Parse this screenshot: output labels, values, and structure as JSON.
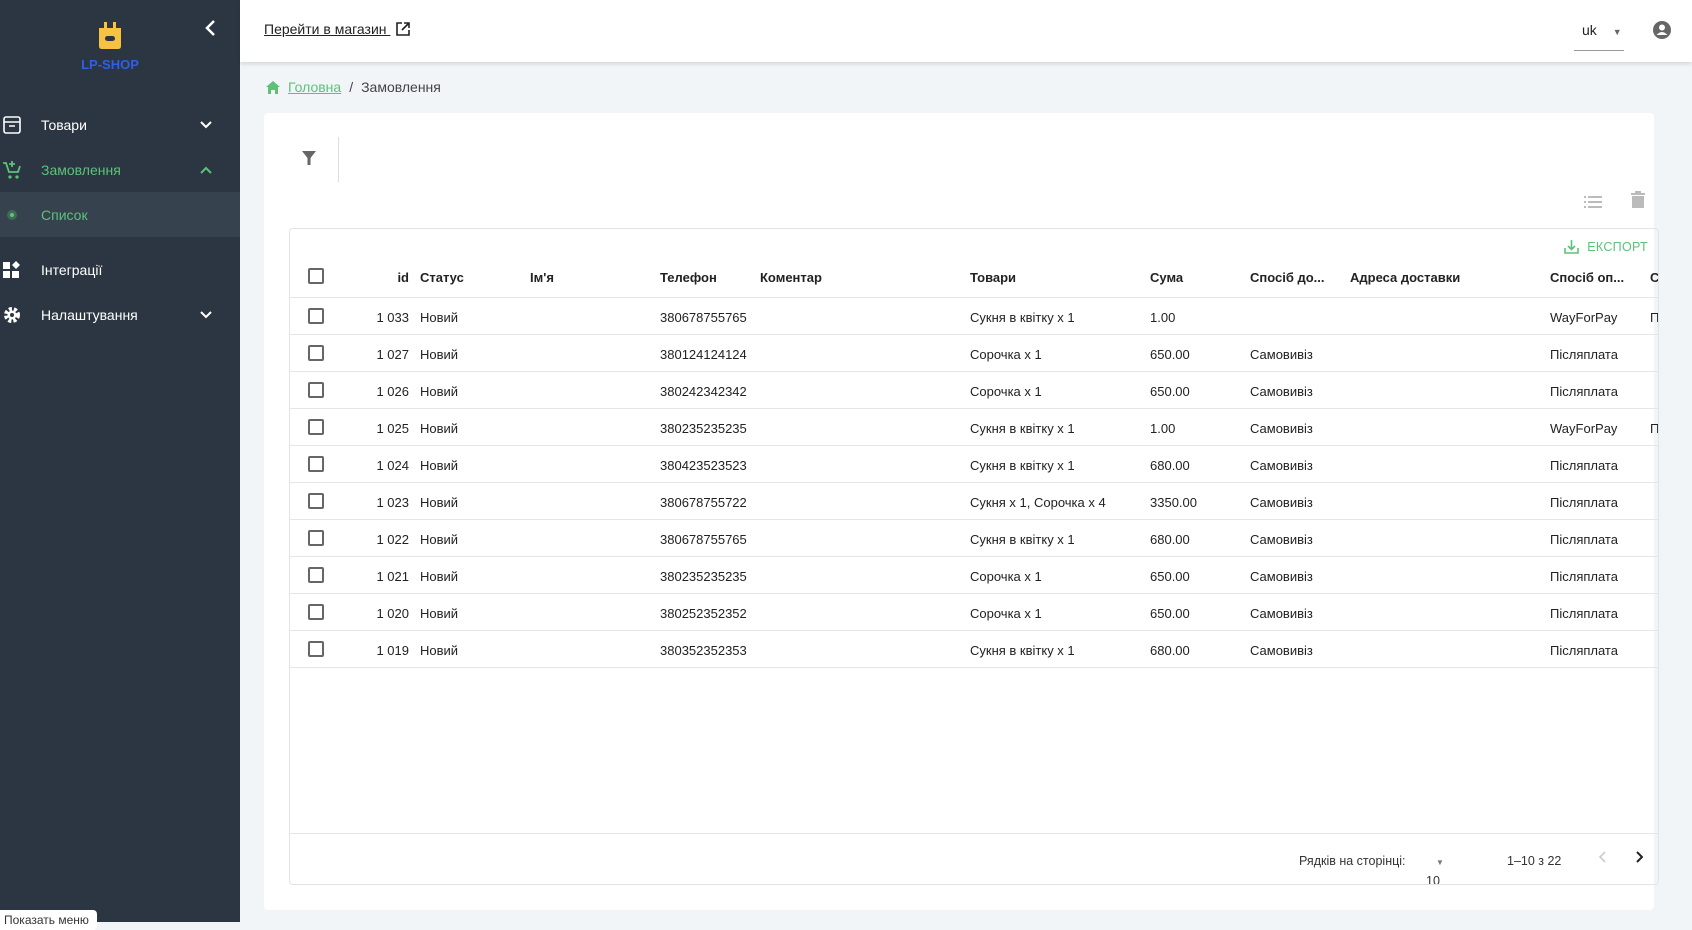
{
  "sidebar": {
    "logo_text": "LP-SHOP",
    "items": [
      {
        "label": "Товари"
      },
      {
        "label": "Замовлення"
      },
      {
        "label": "Список"
      },
      {
        "label": "Інтеграції"
      },
      {
        "label": "Налаштування"
      }
    ],
    "tooltip": "Показать меню"
  },
  "header": {
    "shop_link": "Перейти в магазин",
    "lang": "uk"
  },
  "breadcrumb": {
    "home": "Головна",
    "current": "Замовлення"
  },
  "table": {
    "export_label": "ЕКСПОРТ",
    "columns": [
      "id",
      "Статус",
      "Ім'я",
      "Телефон",
      "Коментар",
      "Товари",
      "Сума",
      "Спосіб до...",
      "Адреса доставки",
      "Спосіб оп...",
      "С"
    ],
    "rows": [
      {
        "id": "1 033",
        "status": "Новий",
        "name": "",
        "phone": "380678755765",
        "comment": "",
        "items": "Сукня в квітку х 1",
        "sum": "1.00",
        "delivery": "",
        "address": "",
        "payment": "WayForPay",
        "extra": "П"
      },
      {
        "id": "1 027",
        "status": "Новий",
        "name": "",
        "phone": "380124124124",
        "comment": "",
        "items": "Сорочка х 1",
        "sum": "650.00",
        "delivery": "Самовивіз",
        "address": "",
        "payment": "Післяплата",
        "extra": ""
      },
      {
        "id": "1 026",
        "status": "Новий",
        "name": "",
        "phone": "380242342342",
        "comment": "",
        "items": "Сорочка х 1",
        "sum": "650.00",
        "delivery": "Самовивіз",
        "address": "",
        "payment": "Післяплата",
        "extra": ""
      },
      {
        "id": "1 025",
        "status": "Новий",
        "name": "",
        "phone": "380235235235",
        "comment": "",
        "items": "Сукня в квітку х 1",
        "sum": "1.00",
        "delivery": "Самовивіз",
        "address": "",
        "payment": "WayForPay",
        "extra": "П"
      },
      {
        "id": "1 024",
        "status": "Новий",
        "name": "",
        "phone": "380423523523",
        "comment": "",
        "items": "Сукня в квітку х 1",
        "sum": "680.00",
        "delivery": "Самовивіз",
        "address": "",
        "payment": "Післяплата",
        "extra": ""
      },
      {
        "id": "1 023",
        "status": "Новий",
        "name": "",
        "phone": "380678755722",
        "comment": "",
        "items": "Сукня х 1, Сорочка х 4",
        "sum": "3350.00",
        "delivery": "Самовивіз",
        "address": "",
        "payment": "Післяплата",
        "extra": ""
      },
      {
        "id": "1 022",
        "status": "Новий",
        "name": "",
        "phone": "380678755765",
        "comment": "",
        "items": "Сукня в квітку х 1",
        "sum": "680.00",
        "delivery": "Самовивіз",
        "address": "",
        "payment": "Післяплата",
        "extra": ""
      },
      {
        "id": "1 021",
        "status": "Новий",
        "name": "",
        "phone": "380235235235",
        "comment": "",
        "items": "Сорочка х 1",
        "sum": "650.00",
        "delivery": "Самовивіз",
        "address": "",
        "payment": "Післяплата",
        "extra": ""
      },
      {
        "id": "1 020",
        "status": "Новий",
        "name": "",
        "phone": "380252352352",
        "comment": "",
        "items": "Сорочка х 1",
        "sum": "650.00",
        "delivery": "Самовивіз",
        "address": "",
        "payment": "Післяплата",
        "extra": ""
      },
      {
        "id": "1 019",
        "status": "Новий",
        "name": "",
        "phone": "380352352353",
        "comment": "",
        "items": "Сукня в квітку х 1",
        "sum": "680.00",
        "delivery": "Самовивіз",
        "address": "",
        "payment": "Післяплата",
        "extra": ""
      }
    ]
  },
  "pagination": {
    "rows_label": "Рядків на сторінці:",
    "rows_per_page": "10",
    "range": "1–10 з 22"
  },
  "colors": {
    "sidebar": "#2c3642",
    "accent": "#5cc27a",
    "logo": "#f5c242",
    "logo_text": "#2f5fe8"
  }
}
